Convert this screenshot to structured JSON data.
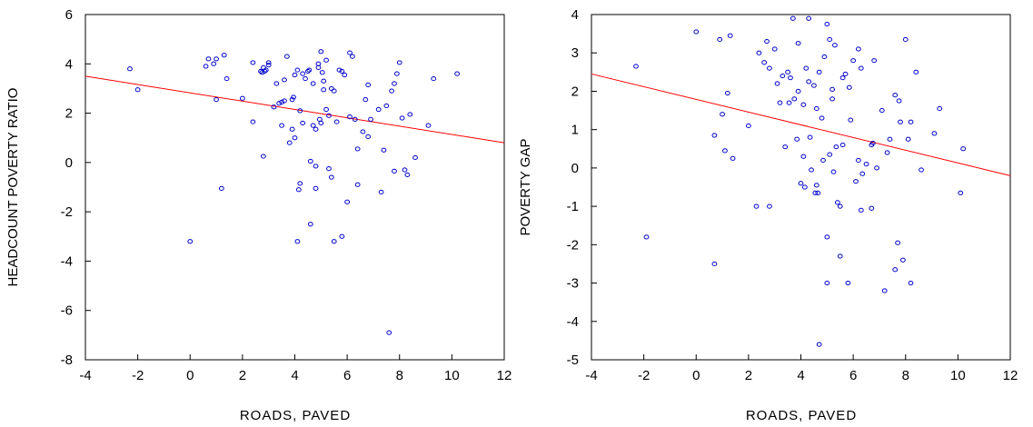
{
  "chart_data": [
    {
      "type": "scatter",
      "title": "",
      "xlabel": "ROADS, PAVED",
      "ylabel": "HEADCOUNT POVERTY RATIO",
      "xlim": [
        -4,
        12
      ],
      "ylim": [
        -8,
        6
      ],
      "xticks": [
        -4,
        -2,
        0,
        2,
        4,
        6,
        8,
        10,
        12
      ],
      "yticks": [
        -8,
        -6,
        -4,
        -2,
        0,
        2,
        4,
        6
      ],
      "grid": false,
      "marker_color": "#0000cc",
      "fit_color": "#ff0000",
      "fit_line": {
        "x": [
          -4,
          12
        ],
        "y": [
          3.5,
          0.8
        ]
      },
      "points": [
        [
          -2.3,
          3.8
        ],
        [
          -2.0,
          2.95
        ],
        [
          0.0,
          -3.2
        ],
        [
          0.6,
          3.9
        ],
        [
          0.7,
          4.2
        ],
        [
          0.9,
          4.0
        ],
        [
          1.0,
          4.2
        ],
        [
          1.0,
          2.55
        ],
        [
          1.2,
          -1.05
        ],
        [
          1.3,
          4.35
        ],
        [
          1.4,
          3.4
        ],
        [
          2.0,
          2.6
        ],
        [
          2.4,
          1.65
        ],
        [
          2.4,
          4.05
        ],
        [
          2.7,
          3.7
        ],
        [
          2.75,
          3.65
        ],
        [
          2.8,
          3.85
        ],
        [
          2.8,
          0.25
        ],
        [
          2.9,
          3.75
        ],
        [
          3.0,
          3.95
        ],
        [
          3.0,
          4.05
        ],
        [
          3.2,
          2.25
        ],
        [
          3.3,
          3.2
        ],
        [
          3.4,
          2.4
        ],
        [
          3.5,
          1.5
        ],
        [
          3.5,
          2.45
        ],
        [
          3.6,
          2.5
        ],
        [
          3.6,
          3.35
        ],
        [
          3.7,
          4.3
        ],
        [
          3.8,
          0.8
        ],
        [
          3.9,
          1.35
        ],
        [
          3.9,
          2.55
        ],
        [
          3.95,
          2.65
        ],
        [
          4.0,
          1.0
        ],
        [
          4.0,
          3.55
        ],
        [
          4.1,
          3.75
        ],
        [
          4.1,
          -3.2
        ],
        [
          4.2,
          2.1
        ],
        [
          4.2,
          -0.85
        ],
        [
          4.3,
          3.6
        ],
        [
          4.3,
          1.6
        ],
        [
          4.4,
          3.4
        ],
        [
          4.5,
          3.7
        ],
        [
          4.55,
          3.75
        ],
        [
          4.6,
          -2.5
        ],
        [
          4.6,
          0.05
        ],
        [
          4.7,
          1.5
        ],
        [
          4.7,
          3.2
        ],
        [
          4.8,
          1.35
        ],
        [
          4.8,
          -0.15
        ],
        [
          4.8,
          -1.05
        ],
        [
          4.9,
          3.85
        ],
        [
          4.9,
          4.0
        ],
        [
          4.95,
          1.75
        ],
        [
          5.0,
          4.5
        ],
        [
          5.0,
          1.6
        ],
        [
          5.05,
          3.65
        ],
        [
          5.1,
          2.95
        ],
        [
          5.1,
          3.3
        ],
        [
          5.2,
          2.15
        ],
        [
          5.2,
          4.15
        ],
        [
          5.3,
          1.9
        ],
        [
          5.3,
          -0.25
        ],
        [
          5.4,
          3.0
        ],
        [
          5.4,
          -0.6
        ],
        [
          5.5,
          2.9
        ],
        [
          5.5,
          -3.2
        ],
        [
          5.6,
          1.65
        ],
        [
          5.7,
          3.75
        ],
        [
          5.8,
          3.7
        ],
        [
          5.8,
          -3.0
        ],
        [
          5.9,
          3.55
        ],
        [
          6.0,
          -1.6
        ],
        [
          6.1,
          4.45
        ],
        [
          6.1,
          1.85
        ],
        [
          6.2,
          4.3
        ],
        [
          6.3,
          1.75
        ],
        [
          6.4,
          0.55
        ],
        [
          6.4,
          -0.9
        ],
        [
          6.6,
          1.25
        ],
        [
          6.7,
          2.55
        ],
        [
          6.8,
          1.05
        ],
        [
          6.8,
          3.15
        ],
        [
          6.9,
          1.75
        ],
        [
          7.2,
          2.15
        ],
        [
          7.3,
          -1.2
        ],
        [
          7.4,
          0.5
        ],
        [
          7.5,
          2.3
        ],
        [
          7.6,
          -6.9
        ],
        [
          7.7,
          2.9
        ],
        [
          7.8,
          3.2
        ],
        [
          7.8,
          -0.35
        ],
        [
          7.9,
          3.6
        ],
        [
          8.0,
          4.05
        ],
        [
          8.1,
          1.8
        ],
        [
          8.2,
          -0.3
        ],
        [
          8.3,
          -0.5
        ],
        [
          8.4,
          1.95
        ],
        [
          8.6,
          0.2
        ],
        [
          9.1,
          1.5
        ],
        [
          9.3,
          3.4
        ],
        [
          10.2,
          3.6
        ],
        [
          4.15,
          -1.1
        ],
        [
          2.85,
          3.7
        ]
      ]
    },
    {
      "type": "scatter",
      "title": "",
      "xlabel": "ROADS, PAVED",
      "ylabel": "POVERTY GAP",
      "xlim": [
        -4,
        12
      ],
      "ylim": [
        -5,
        4
      ],
      "xticks": [
        -4,
        -2,
        0,
        2,
        4,
        6,
        8,
        10,
        12
      ],
      "yticks": [
        -5,
        -4,
        -3,
        -2,
        -1,
        0,
        1,
        2,
        3,
        4
      ],
      "grid": false,
      "marker_color": "#0000cc",
      "fit_color": "#ff0000",
      "fit_line": {
        "x": [
          -4,
          12
        ],
        "y": [
          2.45,
          -0.2
        ]
      },
      "points": [
        [
          -2.3,
          2.65
        ],
        [
          -1.9,
          -1.8
        ],
        [
          0.0,
          3.55
        ],
        [
          0.7,
          0.85
        ],
        [
          0.7,
          -2.5
        ],
        [
          0.9,
          3.35
        ],
        [
          1.0,
          1.4
        ],
        [
          1.1,
          0.45
        ],
        [
          1.2,
          1.95
        ],
        [
          1.3,
          3.45
        ],
        [
          1.4,
          0.25
        ],
        [
          2.0,
          1.1
        ],
        [
          2.3,
          -1.0
        ],
        [
          2.4,
          3.0
        ],
        [
          2.6,
          2.75
        ],
        [
          2.7,
          3.3
        ],
        [
          2.8,
          -1.0
        ],
        [
          2.8,
          2.6
        ],
        [
          3.0,
          3.1
        ],
        [
          3.1,
          2.2
        ],
        [
          3.2,
          1.7
        ],
        [
          3.3,
          2.4
        ],
        [
          3.4,
          0.55
        ],
        [
          3.5,
          2.5
        ],
        [
          3.55,
          1.7
        ],
        [
          3.6,
          2.35
        ],
        [
          3.7,
          3.9
        ],
        [
          3.75,
          1.8
        ],
        [
          3.85,
          0.75
        ],
        [
          3.9,
          2.0
        ],
        [
          3.9,
          3.25
        ],
        [
          4.0,
          -0.4
        ],
        [
          4.1,
          0.3
        ],
        [
          4.1,
          1.65
        ],
        [
          4.15,
          -0.5
        ],
        [
          4.2,
          2.6
        ],
        [
          4.3,
          2.25
        ],
        [
          4.3,
          3.9
        ],
        [
          4.35,
          0.8
        ],
        [
          4.4,
          -0.05
        ],
        [
          4.5,
          2.15
        ],
        [
          4.55,
          -0.65
        ],
        [
          4.6,
          1.55
        ],
        [
          4.6,
          -0.45
        ],
        [
          4.65,
          -0.65
        ],
        [
          4.7,
          2.5
        ],
        [
          4.7,
          -4.6
        ],
        [
          4.8,
          1.3
        ],
        [
          4.85,
          0.2
        ],
        [
          4.9,
          2.9
        ],
        [
          5.0,
          3.75
        ],
        [
          5.0,
          -1.8
        ],
        [
          5.0,
          -3.0
        ],
        [
          5.1,
          3.35
        ],
        [
          5.1,
          0.35
        ],
        [
          5.2,
          1.8
        ],
        [
          5.2,
          2.05
        ],
        [
          5.25,
          -0.1
        ],
        [
          5.3,
          3.2
        ],
        [
          5.35,
          0.55
        ],
        [
          5.4,
          -0.9
        ],
        [
          5.5,
          -1.0
        ],
        [
          5.5,
          -2.3
        ],
        [
          5.6,
          0.6
        ],
        [
          5.6,
          2.35
        ],
        [
          5.7,
          2.45
        ],
        [
          5.8,
          -3.0
        ],
        [
          5.85,
          2.1
        ],
        [
          5.9,
          1.25
        ],
        [
          6.0,
          2.8
        ],
        [
          6.1,
          -0.35
        ],
        [
          6.2,
          3.1
        ],
        [
          6.2,
          0.2
        ],
        [
          6.3,
          2.6
        ],
        [
          6.3,
          -1.1
        ],
        [
          6.35,
          -0.15
        ],
        [
          6.5,
          0.1
        ],
        [
          6.7,
          -1.05
        ],
        [
          6.7,
          0.6
        ],
        [
          6.8,
          2.8
        ],
        [
          6.9,
          0.0
        ],
        [
          7.1,
          1.5
        ],
        [
          7.2,
          -3.2
        ],
        [
          7.3,
          0.4
        ],
        [
          7.4,
          0.75
        ],
        [
          7.6,
          1.9
        ],
        [
          7.7,
          -1.95
        ],
        [
          7.75,
          1.75
        ],
        [
          7.8,
          1.2
        ],
        [
          7.9,
          -2.4
        ],
        [
          8.0,
          3.35
        ],
        [
          8.1,
          0.75
        ],
        [
          8.2,
          1.2
        ],
        [
          8.2,
          -3.0
        ],
        [
          8.4,
          2.5
        ],
        [
          8.6,
          -0.05
        ],
        [
          9.1,
          0.9
        ],
        [
          9.3,
          1.55
        ],
        [
          10.1,
          -0.65
        ],
        [
          10.2,
          0.5
        ],
        [
          7.6,
          -2.65
        ],
        [
          6.75,
          0.65
        ]
      ]
    }
  ]
}
